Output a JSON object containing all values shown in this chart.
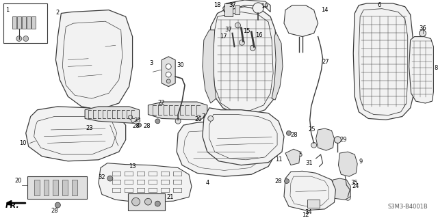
{
  "bg_color": "#ffffff",
  "diagram_ref": "S3M3-B4001B",
  "fig_width": 6.4,
  "fig_height": 3.19,
  "dpi": 100,
  "label_fontsize": 6.0,
  "line_color": "#3a3a3a",
  "light_fill": "#f2f2f2",
  "medium_fill": "#e0e0e0",
  "dark_fill": "#c8c8c8"
}
